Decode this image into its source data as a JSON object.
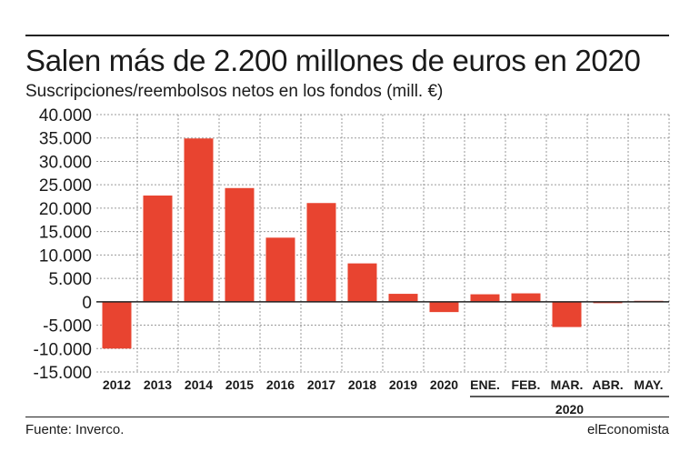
{
  "header": {
    "title": "Salen más de 2.200 millones de euros en 2020",
    "subtitle": "Suscripciones/reembolsos netos en los fondos (mill. €)"
  },
  "footer": {
    "source": "Fuente: Inverco.",
    "brand": "elEconomista"
  },
  "colors": {
    "bar": "#e84430",
    "grid": "#9a9a9a",
    "axis": "#222222",
    "text": "#1a1a1a"
  },
  "chart_data": {
    "type": "bar",
    "categories": [
      "2012",
      "2013",
      "2014",
      "2015",
      "2016",
      "2017",
      "2018",
      "2019",
      "2020",
      "ENE.",
      "FEB.",
      "MAR.",
      "ABR.",
      "MAY."
    ],
    "values": [
      -10000,
      22700,
      34900,
      24300,
      13700,
      21100,
      8200,
      1700,
      -2200,
      1600,
      1800,
      -5400,
      -300,
      200
    ],
    "group_label": "2020",
    "group_categories": [
      "ENE.",
      "FEB.",
      "MAR.",
      "ABR.",
      "MAY."
    ],
    "yticks": [
      "40.000",
      "35.000",
      "30.000",
      "25.000",
      "20.000",
      "15.000",
      "10.000",
      "5.000",
      "0",
      "-5.000",
      "-10.000",
      "-15.000"
    ],
    "ylim": [
      -15000,
      40000
    ],
    "ytick_step": 5000,
    "grid": true,
    "xlabel": "",
    "ylabel": ""
  }
}
